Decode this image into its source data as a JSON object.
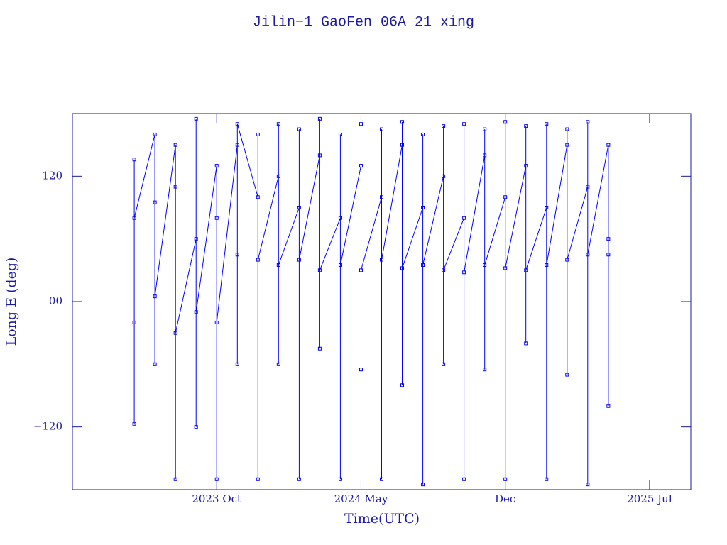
{
  "chart_data": {
    "type": "line",
    "title": "Jilin−1 GaoFen 06A 21 xing",
    "x_label": "Time(UTC)",
    "y_label": "Long E (deg)",
    "color": "#0000ff",
    "xlim": [
      "2023-03",
      "2025-09"
    ],
    "xticks": [
      {
        "value": "2023-10",
        "label": "2023 Oct"
      },
      {
        "value": "2024-05",
        "label": "2024 May"
      },
      {
        "value": "2024-12",
        "label": "Dec"
      },
      {
        "value": "2025-07",
        "label": "2025 Jul"
      }
    ],
    "ylim": [
      -180,
      180
    ],
    "yticks": [
      {
        "value": -120,
        "label": "−120"
      },
      {
        "value": 0,
        "label": "00"
      },
      120
    ],
    "x": [
      "2023-06",
      "2023-06",
      "2023-06",
      "2023-06",
      "2023-07",
      "2023-07",
      "2023-07",
      "2023-07",
      "2023-08",
      "2023-08",
      "2023-08",
      "2023-08",
      "2023-09",
      "2023-09",
      "2023-09",
      "2023-09",
      "2023-10",
      "2023-10",
      "2023-10",
      "2023-10",
      "2023-11",
      "2023-11",
      "2023-11",
      "2023-11",
      "2023-12",
      "2023-12",
      "2023-12",
      "2023-12",
      "2024-01",
      "2024-01",
      "2024-01",
      "2024-01",
      "2024-02",
      "2024-02",
      "2024-02",
      "2024-02",
      "2024-03",
      "2024-03",
      "2024-03",
      "2024-03",
      "2024-04",
      "2024-04",
      "2024-04",
      "2024-04",
      "2024-05",
      "2024-05",
      "2024-05",
      "2024-05",
      "2024-06",
      "2024-06",
      "2024-06",
      "2024-06",
      "2024-07",
      "2024-07",
      "2024-07",
      "2024-07",
      "2024-08",
      "2024-08",
      "2024-08",
      "2024-08",
      "2024-09",
      "2024-09",
      "2024-09",
      "2024-09",
      "2024-10",
      "2024-10",
      "2024-10",
      "2024-10",
      "2024-11",
      "2024-11",
      "2024-11",
      "2024-11",
      "2024-12",
      "2024-12",
      "2024-12",
      "2024-12",
      "2025-01",
      "2025-01",
      "2025-01",
      "2025-01",
      "2025-02",
      "2025-02",
      "2025-02",
      "2025-02",
      "2025-03",
      "2025-03",
      "2025-03",
      "2025-03",
      "2025-04",
      "2025-04",
      "2025-04",
      "2025-04",
      "2025-05",
      "2025-05",
      "2025-05",
      "2025-05"
    ],
    "values": [
      136,
      -20,
      -117,
      80,
      160,
      -60,
      95,
      5,
      150,
      -170,
      110,
      -30,
      60,
      -120,
      175,
      -10,
      130,
      -170,
      80,
      -20,
      150,
      45,
      -60,
      170,
      100,
      -170,
      160,
      40,
      120,
      -60,
      170,
      35,
      90,
      -170,
      165,
      40,
      140,
      -45,
      175,
      30,
      80,
      -170,
      160,
      35,
      130,
      -65,
      170,
      30,
      100,
      -170,
      165,
      40,
      150,
      -80,
      172,
      32,
      90,
      -175,
      160,
      35,
      120,
      -60,
      168,
      30,
      80,
      -170,
      170,
      28,
      140,
      -65,
      165,
      35,
      100,
      -170,
      172,
      32,
      130,
      -40,
      168,
      30,
      90,
      -170,
      170,
      35,
      150,
      -70,
      165,
      40,
      110,
      -175,
      172,
      45,
      150,
      -100,
      60,
      45
    ]
  }
}
